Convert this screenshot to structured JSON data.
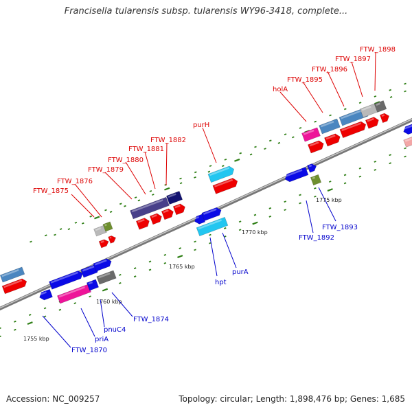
{
  "title": "Francisella tularensis subsp. tularensis WY96-3418, complete...",
  "footer": {
    "accession": "Accession: NC_009257",
    "summary": "Topology: circular; Length: 1,898,476 bp; Genes: 1,685"
  },
  "colors": {
    "top_labels": "#dd0000",
    "bottom_labels": "#0000cc",
    "backbone": "#888888",
    "tick": "#3a8a1e"
  },
  "scale_labels": [
    "1755 kbp",
    "1760 kbp",
    "1765 kbp",
    "1770 kbp",
    "1775 kbp"
  ],
  "top_gene_labels": [
    "FTW_1875",
    "FTW_1876",
    "FTW_1879",
    "FTW_1880",
    "FTW_1881",
    "FTW_1882",
    "purH",
    "holA",
    "FTW_1895",
    "FTW_1896",
    "FTW_1897",
    "FTW_1898"
  ],
  "bottom_gene_labels": [
    "FTW_1870",
    "priA",
    "pnuC4",
    "FTW_1874",
    "hpt",
    "purA",
    "FTW_1892",
    "FTW_1893"
  ]
}
